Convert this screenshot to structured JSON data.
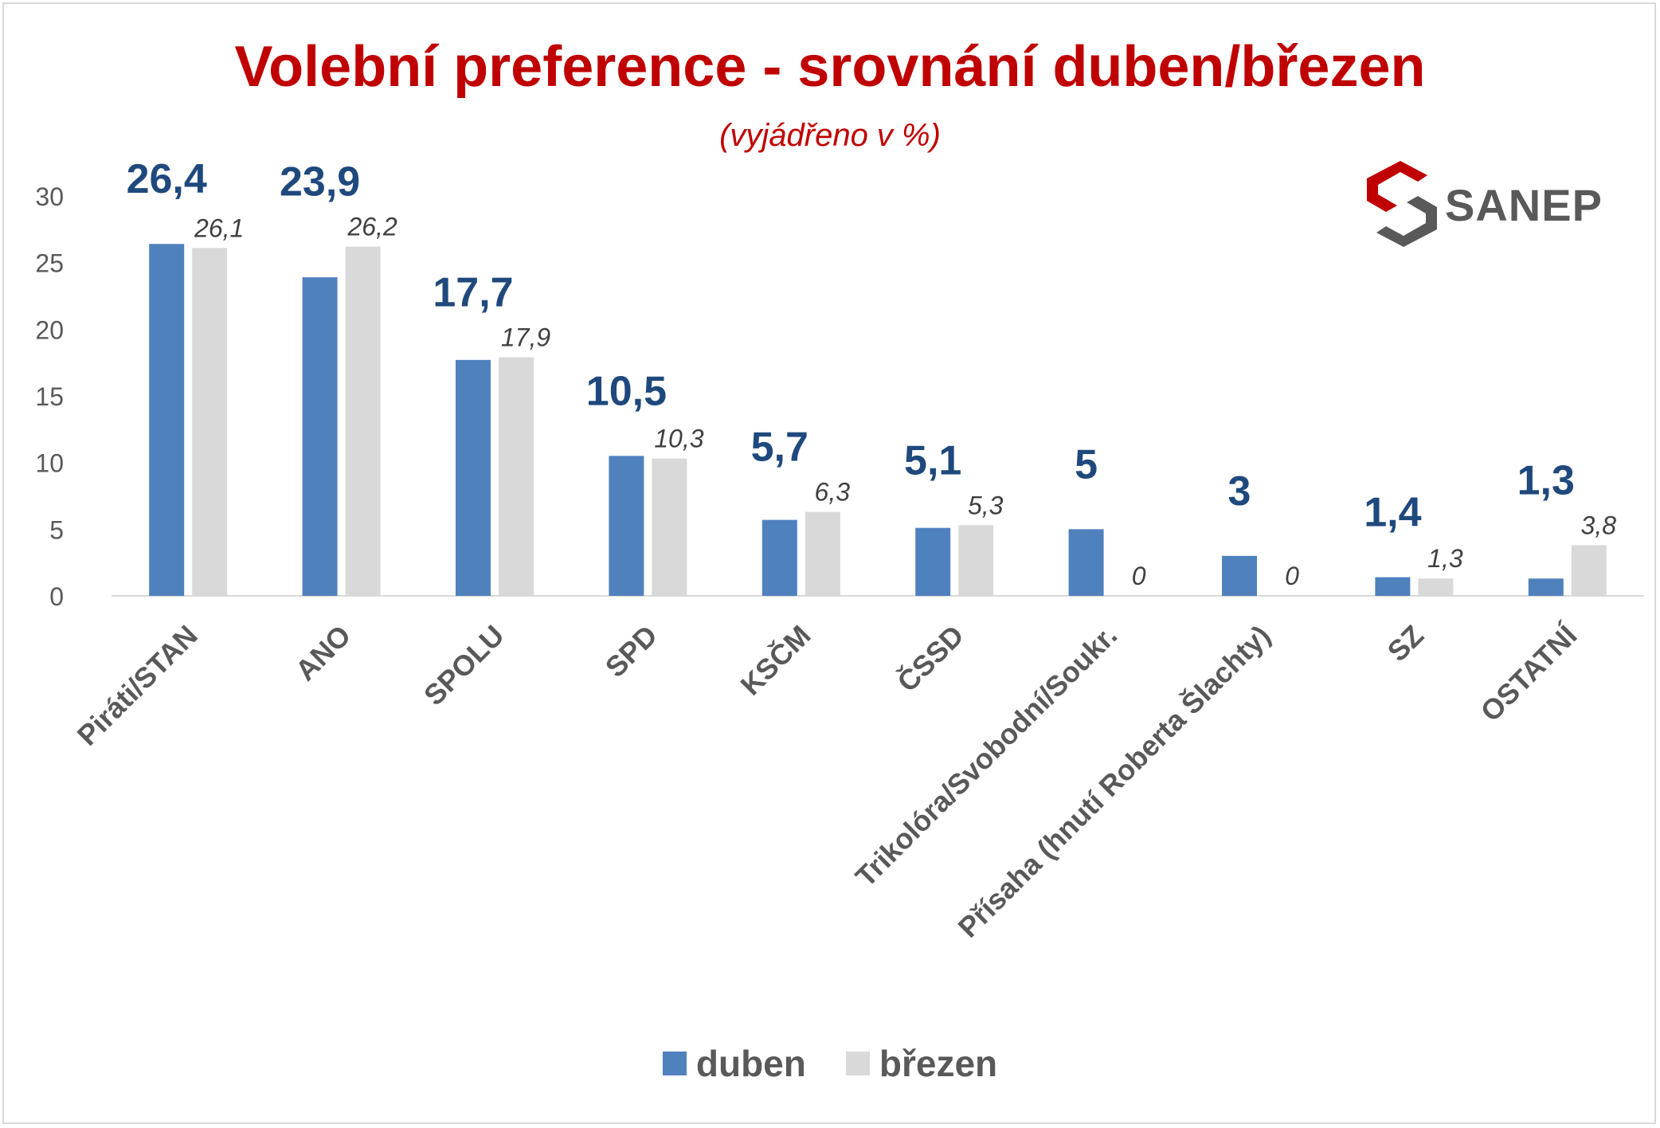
{
  "title": "Volební preference - srovnání duben/březen",
  "subtitle": "(vyjádřeno v %)",
  "logo": {
    "text": "SANEP",
    "icon": "sanep-logo-icon",
    "color_red": "#c00000",
    "color_gray": "#595959"
  },
  "chart_data": {
    "type": "bar",
    "categories": [
      "Piráti/STAN",
      "ANO",
      "SPOLU",
      "SPD",
      "KSČM",
      "ČSSD",
      "Trikolóra/Svobodní/Soukr.",
      "Přísaha (hnutí Roberta Šlachty)",
      "SZ",
      "OSTATNÍ"
    ],
    "series": [
      {
        "name": "duben",
        "color": "#4f81bd",
        "values": [
          26.4,
          23.9,
          17.7,
          10.5,
          5.7,
          5.1,
          5,
          3,
          1.4,
          1.3
        ],
        "labels": [
          "26,4",
          "23,9",
          "17,7",
          "10,5",
          "5,7",
          "5,1",
          "5",
          "3",
          "1,4",
          "1,3"
        ]
      },
      {
        "name": "březen",
        "color": "#d9d9d9",
        "values": [
          26.1,
          26.2,
          17.9,
          10.3,
          6.3,
          5.3,
          0,
          0,
          1.3,
          3.8
        ],
        "labels": [
          "26,1",
          "26,2",
          "17,9",
          "10,3",
          "6,3",
          "5,3",
          "0",
          "0",
          "1,3",
          "3,8"
        ]
      }
    ],
    "y_ticks": [
      "0",
      "5",
      "10",
      "15",
      "20",
      "25",
      "30"
    ],
    "ylim": [
      0,
      30
    ],
    "grid": false,
    "legend_position": "bottom",
    "label_color_duben": "#1f497d",
    "label_color_brezen": "#404040",
    "axis_text_color": "#595959"
  }
}
